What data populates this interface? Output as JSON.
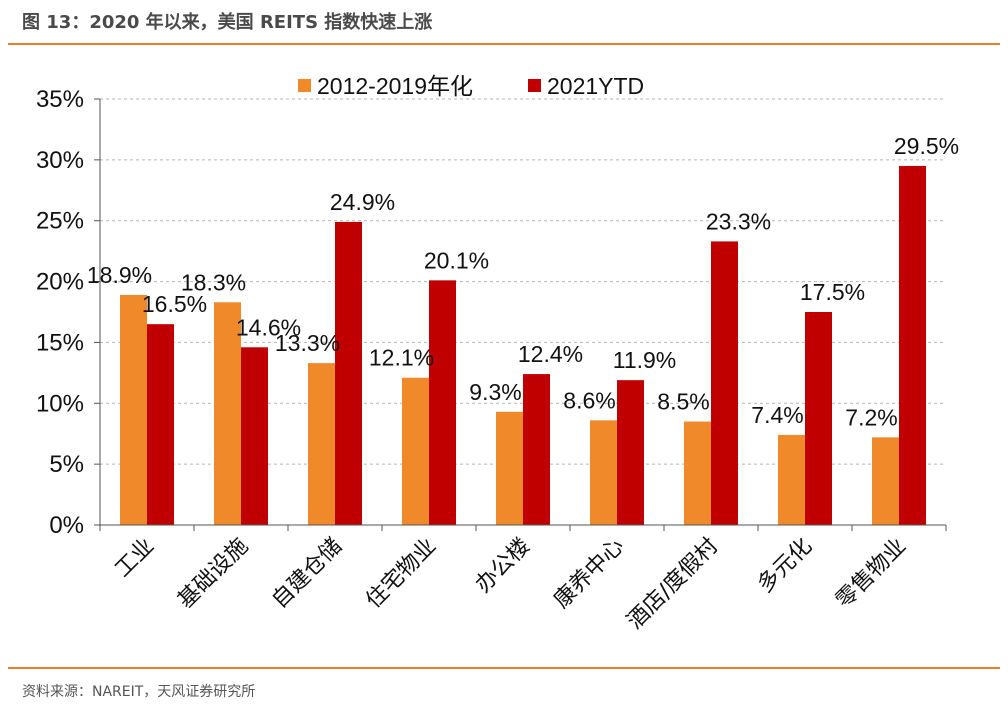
{
  "header": {
    "title": "图 13：2020 年以来，美国 REITS 指数快速上涨"
  },
  "footer": {
    "source": "资料来源：NAREIT，天风证券研究所"
  },
  "chart_data": {
    "type": "bar",
    "categories": [
      "工业",
      "基础设施",
      "自建仓储",
      "住宅物业",
      "办公楼",
      "康养中心",
      "酒店/度假村",
      "多元化",
      "零售物业"
    ],
    "series": [
      {
        "name": "2012-2019年化",
        "color": "#f0892a",
        "values": [
          18.9,
          18.3,
          13.3,
          12.1,
          9.3,
          8.6,
          8.5,
          7.4,
          7.2
        ],
        "labels": [
          "18.9%",
          "18.3%",
          "13.3%",
          "12.1%",
          "9.3%",
          "8.6%",
          "8.5%",
          "7.4%",
          "7.2%"
        ]
      },
      {
        "name": "2021YTD",
        "color": "#c00000",
        "values": [
          16.5,
          14.6,
          24.9,
          20.1,
          12.4,
          11.9,
          23.3,
          17.5,
          29.5
        ],
        "labels": [
          "16.5%",
          "14.6%",
          "24.9%",
          "20.1%",
          "12.4%",
          "11.9%",
          "23.3%",
          "17.5%",
          "29.5%"
        ]
      }
    ],
    "ylim": [
      0,
      35
    ],
    "yticks": [
      0,
      5,
      10,
      15,
      20,
      25,
      30,
      35
    ],
    "ytick_labels": [
      "0%",
      "5%",
      "10%",
      "15%",
      "20%",
      "25%",
      "30%",
      "35%"
    ],
    "grid": true,
    "legend_position": "top-center"
  }
}
